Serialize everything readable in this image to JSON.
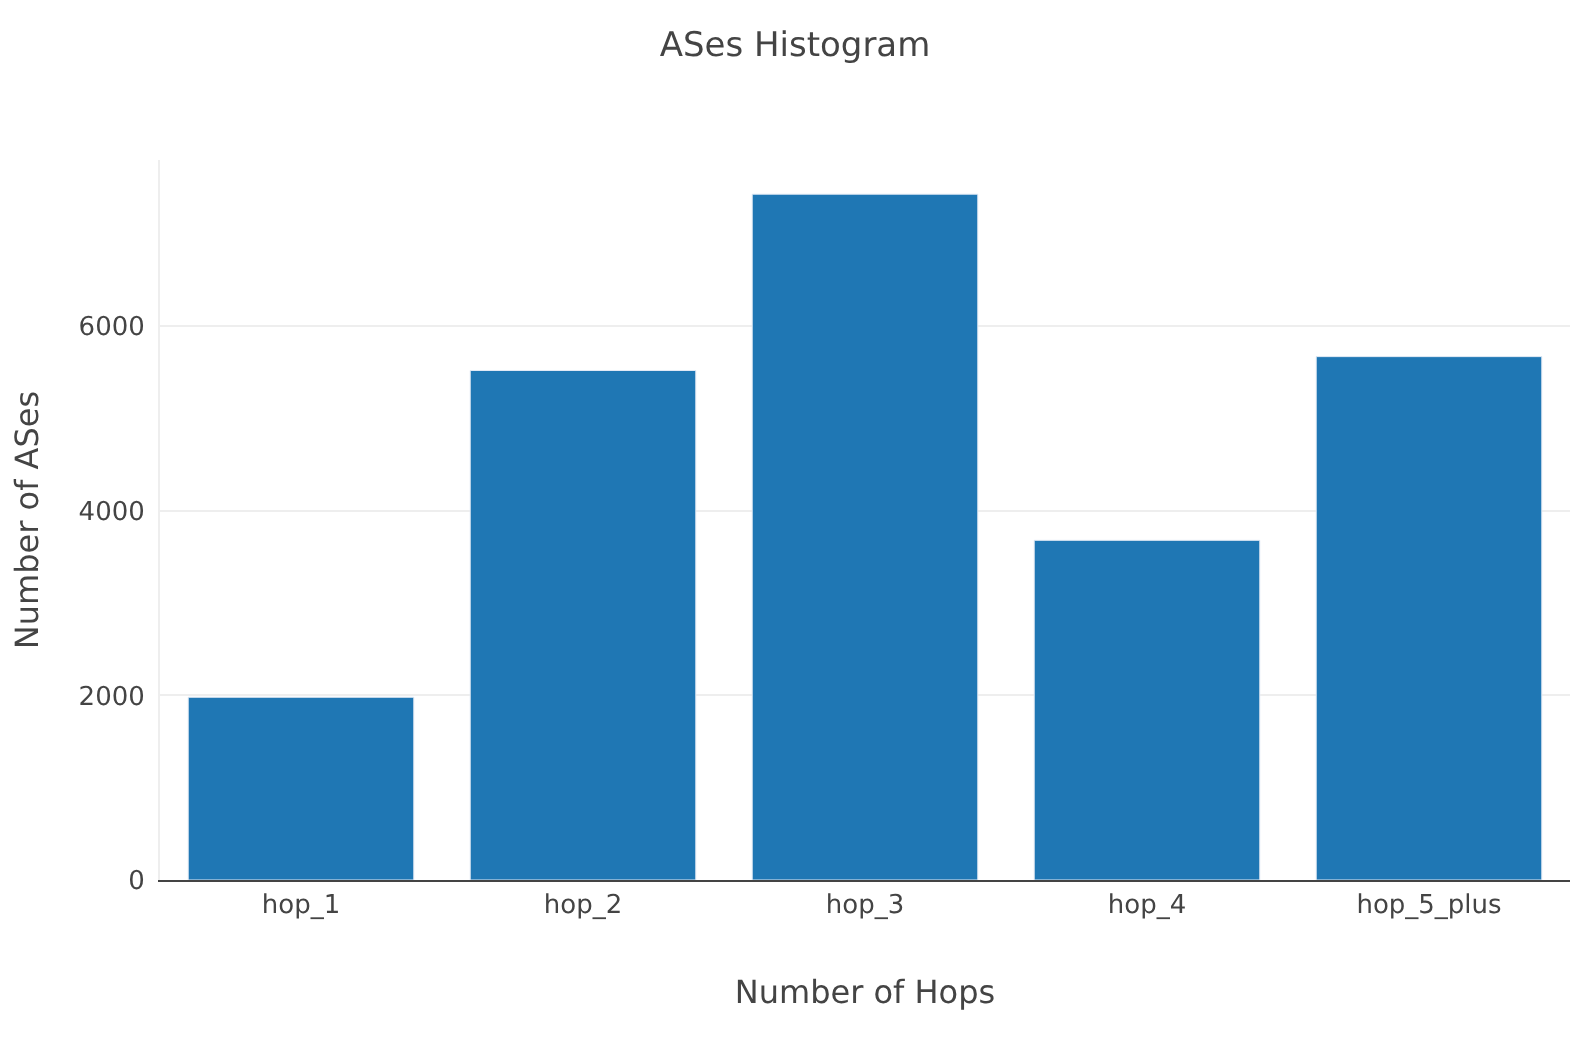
{
  "chart_data": {
    "type": "bar",
    "title": "ASes Histogram",
    "xlabel": "Number of Hops",
    "ylabel": "Number of ASes",
    "categories": [
      "hop_1",
      "hop_2",
      "hop_3",
      "hop_4",
      "hop_5_plus"
    ],
    "values": [
      1980,
      5520,
      7430,
      3680,
      5670
    ],
    "color": "#1f77b4",
    "ylim": [
      0,
      7800
    ],
    "yticks": [
      0,
      2000,
      4000,
      6000
    ],
    "grid": "y"
  }
}
